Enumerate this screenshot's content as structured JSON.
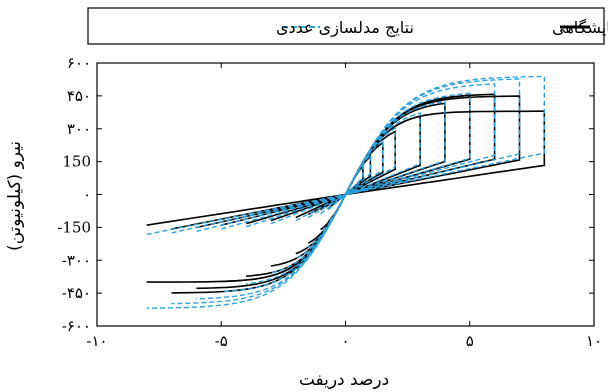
{
  "chart_data": {
    "type": "line",
    "xlabel": "درصد دریفت",
    "ylabel": "نیرو (کیلونیوتن)",
    "xlim": [
      -10,
      10
    ],
    "ylim": [
      -600,
      600
    ],
    "x_ticks": [
      {
        "value": -10,
        "label": "-۱۰"
      },
      {
        "value": -5,
        "label": "-۵"
      },
      {
        "value": 0,
        "label": "۰"
      },
      {
        "value": 5,
        "label": "۵"
      },
      {
        "value": 10,
        "label": "۱۰"
      }
    ],
    "y_ticks": [
      {
        "value": 600,
        "label": "۶۰۰"
      },
      {
        "value": 450,
        "label": "۴۵۰"
      },
      {
        "value": 300,
        "label": "۳۰۰"
      },
      {
        "value": 150,
        "label": "150"
      },
      {
        "value": 0,
        "label": "۰"
      },
      {
        "value": -150,
        "label": "-150"
      },
      {
        "value": -300,
        "label": "-۳۰۰"
      },
      {
        "value": -450,
        "label": "-۴۵۰"
      },
      {
        "value": -600,
        "label": "-۶۰۰"
      }
    ],
    "legend_position": "top",
    "series": [
      {
        "name": "نتایج آزمایشگاهی",
        "color": "#000000",
        "style": "solid",
        "loops": [
          {
            "amp": 0.7,
            "fmax": 200,
            "fmin": -180
          },
          {
            "amp": 1.0,
            "fmax": 240,
            "fmin": -200
          },
          {
            "amp": 1.5,
            "fmax": 290,
            "fmin": -260
          },
          {
            "amp": 2.0,
            "fmax": 330,
            "fmin": -300
          },
          {
            "amp": 3.0,
            "fmax": 380,
            "fmin": -340
          },
          {
            "amp": 4.0,
            "fmax": 430,
            "fmin": -380
          },
          {
            "amp": 5.0,
            "fmax": 460,
            "fmin": -400
          },
          {
            "amp": 6.0,
            "fmax": 460,
            "fmin": -430
          },
          {
            "amp": 7.0,
            "fmax": 450,
            "fmin": -450
          },
          {
            "amp": 8.0,
            "fmax": 380,
            "fmin": -400
          }
        ]
      },
      {
        "name": "نتایج مدلسازی عددی",
        "color": "#29a3e0",
        "style": "dashed",
        "loops": [
          {
            "amp": 0.7,
            "fmax": 220,
            "fmin": -200
          },
          {
            "amp": 1.0,
            "fmax": 270,
            "fmin": -250
          },
          {
            "amp": 1.5,
            "fmax": 320,
            "fmin": -300
          },
          {
            "amp": 2.0,
            "fmax": 360,
            "fmin": -340
          },
          {
            "amp": 3.0,
            "fmax": 400,
            "fmin": -380
          },
          {
            "amp": 4.0,
            "fmax": 440,
            "fmin": -420
          },
          {
            "amp": 5.0,
            "fmax": 470,
            "fmin": -450
          },
          {
            "amp": 6.0,
            "fmax": 510,
            "fmin": -480
          },
          {
            "amp": 7.0,
            "fmax": 530,
            "fmin": -500
          },
          {
            "amp": 8.0,
            "fmax": 540,
            "fmin": -520
          }
        ]
      }
    ]
  }
}
